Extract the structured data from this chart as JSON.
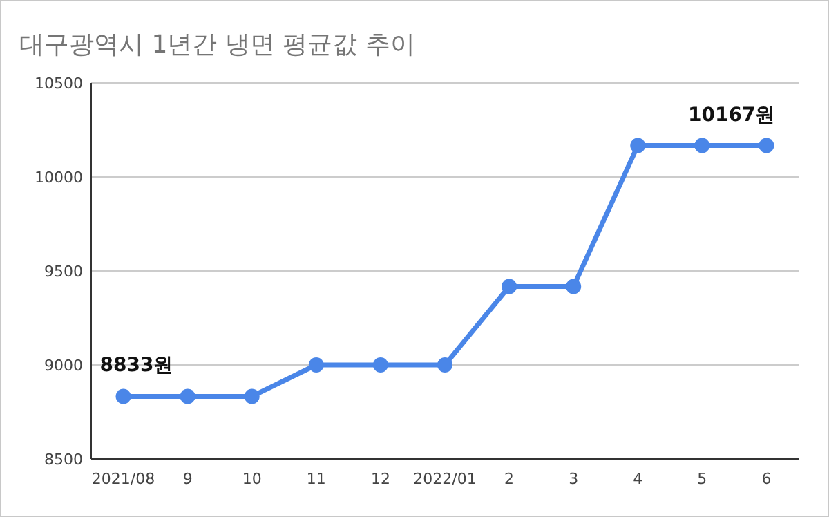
{
  "chart_data": {
    "type": "line",
    "title": "대구광역시 1년간 냉면 평균값 추이",
    "categories": [
      "2021/08",
      "9",
      "10",
      "11",
      "12",
      "2022/01",
      "2",
      "3",
      "4",
      "5",
      "6"
    ],
    "series": [
      {
        "color": "#4a86e8",
        "values": [
          8833,
          8833,
          8833,
          9000,
          9000,
          9000,
          9417,
          9417,
          10167,
          10167,
          10167
        ],
        "value_labels": [
          "8833원",
          null,
          null,
          null,
          null,
          null,
          null,
          null,
          null,
          null,
          "10167원"
        ]
      }
    ],
    "ylim": [
      8500,
      10500
    ],
    "yticks": [
      8500,
      9000,
      9500,
      10000,
      10500
    ],
    "grid": "y",
    "marker": "circle",
    "line_style": "solid"
  }
}
